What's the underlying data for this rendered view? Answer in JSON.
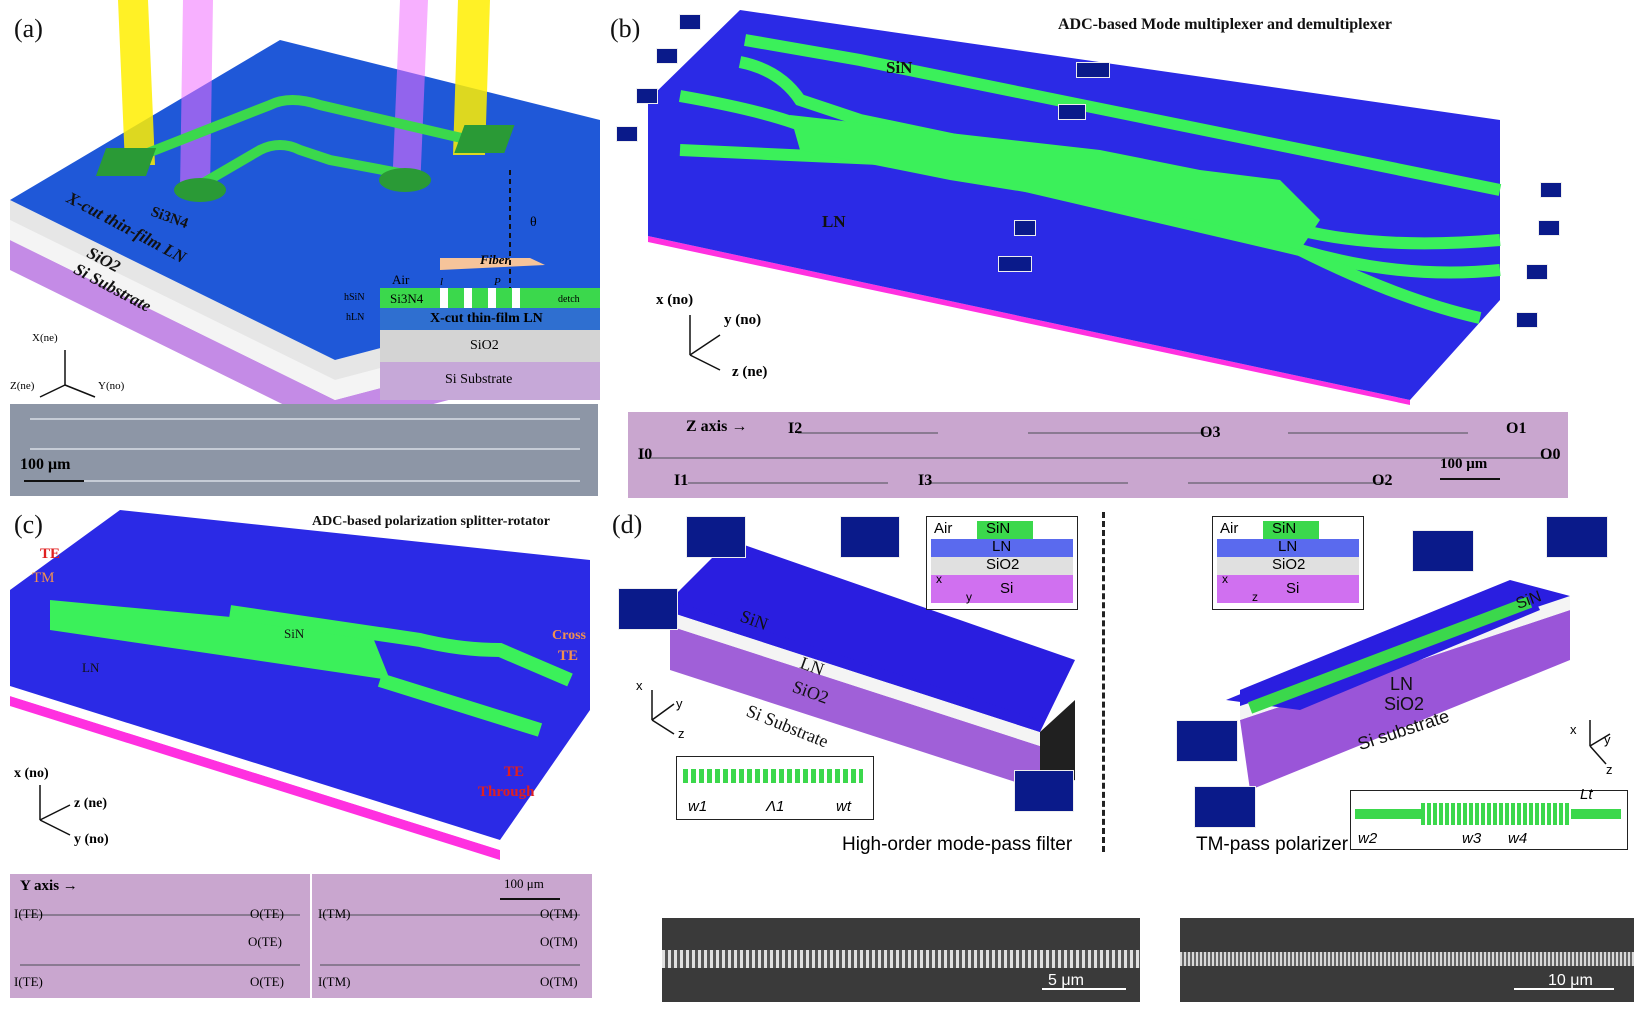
{
  "figure": {
    "panels": {
      "a": {
        "label": "(a)",
        "layers": [
          "Si Substrate",
          "SiO2",
          "X-cut thin-film LN"
        ],
        "waveguide_label": "Si3N4",
        "cross_section": {
          "air": "Air",
          "core": "Si3N4",
          "lns": "X-cut thin-film LN",
          "sio2": "SiO2",
          "sub": "Si Substrate",
          "fiber": "Fiber",
          "theta": "θ",
          "h_sin": "hSiN",
          "h_ln": "hLN",
          "d_etch": "detch",
          "l": "l",
          "p": "P"
        },
        "axes": {
          "x": "X(ne)",
          "y": "Y(no)",
          "z": "Z(ne)"
        },
        "scale_bar": "100 μm"
      },
      "b": {
        "label": "(b)",
        "title": "ADC-based Mode multiplexer and demultiplexer",
        "wg_top": "SiN",
        "wg_bottom": "LN",
        "axes": {
          "x": "x (no)",
          "y": "y (no)",
          "z": "z (ne)"
        },
        "micro": {
          "axis": "Z axis →",
          "ports": [
            "I0",
            "I1",
            "I2",
            "I3",
            "O0",
            "O1",
            "O2",
            "O3"
          ],
          "scale_bar": "100 μm"
        }
      },
      "c": {
        "label": "(c)",
        "title": "ADC-based polarization splitter-rotator",
        "in_te": "TE",
        "in_tm": "TM",
        "cross": "Cross",
        "cross_te": "TE",
        "through_te": "TE",
        "through": "Through",
        "wg_top": "SiN",
        "wg_bottom": "LN",
        "axes": {
          "x": "x (no)",
          "y": "y (no)",
          "z": "z (ne)"
        },
        "micro": {
          "axis": "Y axis →",
          "scale_bar": "100 μm",
          "left": [
            "I(TE)",
            "O(TE)",
            "I(TE)",
            "O(TE)",
            "O(TE)"
          ],
          "right": [
            "I(TM)",
            "O(TM)",
            "I(TM)",
            "O(TM)",
            "O(TM)"
          ]
        }
      },
      "d": {
        "label": "(d)",
        "left": {
          "caption": "High-order mode-pass filter",
          "sin": "SiN",
          "ln": "LN",
          "sio2": "SiO2",
          "sub": "Si Substrate",
          "inset_layers": [
            "Air",
            "SiN",
            "LN",
            "SiO2",
            "Si"
          ],
          "inset_axes": [
            "x",
            "y"
          ],
          "axes": [
            "x",
            "y",
            "z"
          ],
          "dims": [
            "w1",
            "Λ1",
            "wt"
          ],
          "scale_bar": "5 μm"
        },
        "right": {
          "caption": "TM-pass polarizer",
          "sin": "SiN",
          "ln": "LN",
          "sio2": "SiO2",
          "sub": "Si substrate",
          "inset_layers": [
            "Air",
            "SiN",
            "LN",
            "SiO2",
            "Si"
          ],
          "inset_axes": [
            "x",
            "z"
          ],
          "axes": [
            "x",
            "y",
            "z"
          ],
          "dims": [
            "w2",
            "w3",
            "w4",
            "Lt"
          ],
          "scale_bar": "10 μm"
        }
      }
    },
    "colors": {
      "ln_blue": "#1f3fd6",
      "ln_blue_b": "#2a2ee8",
      "sin_green": "#39e85a",
      "sio2_white": "#f2f2f2",
      "si_purple": "#b070e0",
      "magenta": "#ff30e0",
      "micro_purple": "#c9a6cf",
      "micro_gray": "#8d96a6"
    }
  }
}
